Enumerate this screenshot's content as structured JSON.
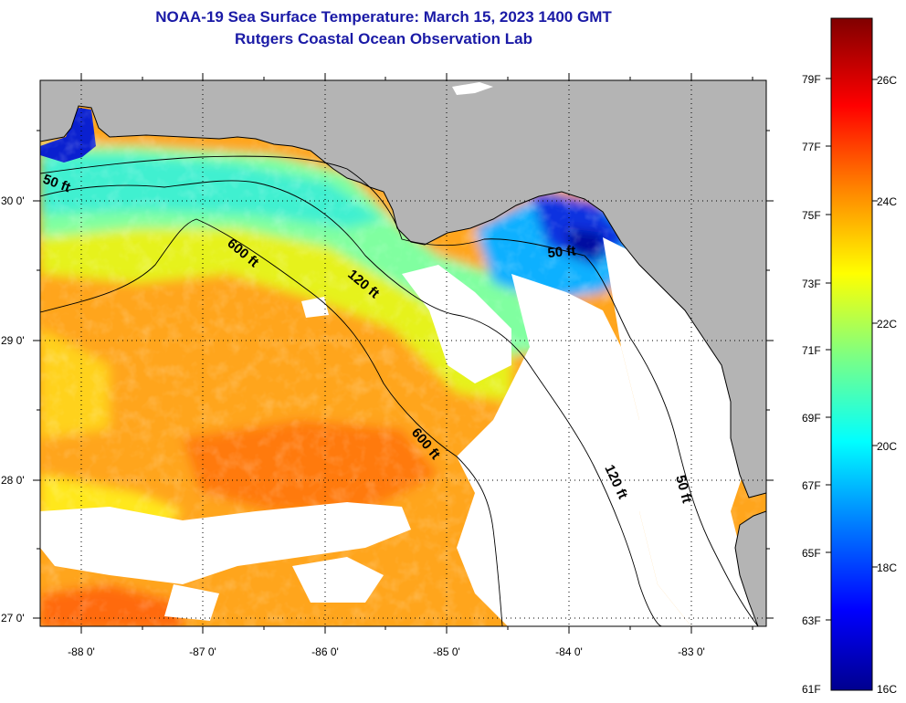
{
  "title": {
    "line1": "NOAA-19 Sea Surface Temperature:  March 15, 2023 1400 GMT",
    "line2": "Rutgers Coastal Ocean Observation Lab"
  },
  "map": {
    "lon_ticks": [
      "-88 0'",
      "-87 0'",
      "-86 0'",
      "-85 0'",
      "-84 0'",
      "-83 0'"
    ],
    "lat_ticks": [
      "30 0'",
      "29 0'",
      "28 0'",
      "27 0'"
    ],
    "contour_labels": [
      "50 ft",
      "600 ft",
      "120 ft",
      "50 ft",
      "600 ft",
      "120 ft",
      "50 ft"
    ],
    "colors": {
      "land": "#b4b4b4",
      "cloud": "#ffffff",
      "grid": "#000000"
    }
  },
  "colorbar": {
    "fahrenheit_labels": [
      "79F",
      "77F",
      "75F",
      "73F",
      "71F",
      "69F",
      "67F",
      "65F",
      "63F",
      "61F"
    ],
    "celsius_labels": [
      "26C",
      "24C",
      "22C",
      "20C",
      "18C",
      "16C"
    ],
    "min_c": 16,
    "max_c": 27,
    "colors": [
      "#00008f",
      "#0000ff",
      "#0080ff",
      "#00ffff",
      "#80ff80",
      "#ffff00",
      "#ff8000",
      "#ff0000",
      "#800000"
    ]
  }
}
